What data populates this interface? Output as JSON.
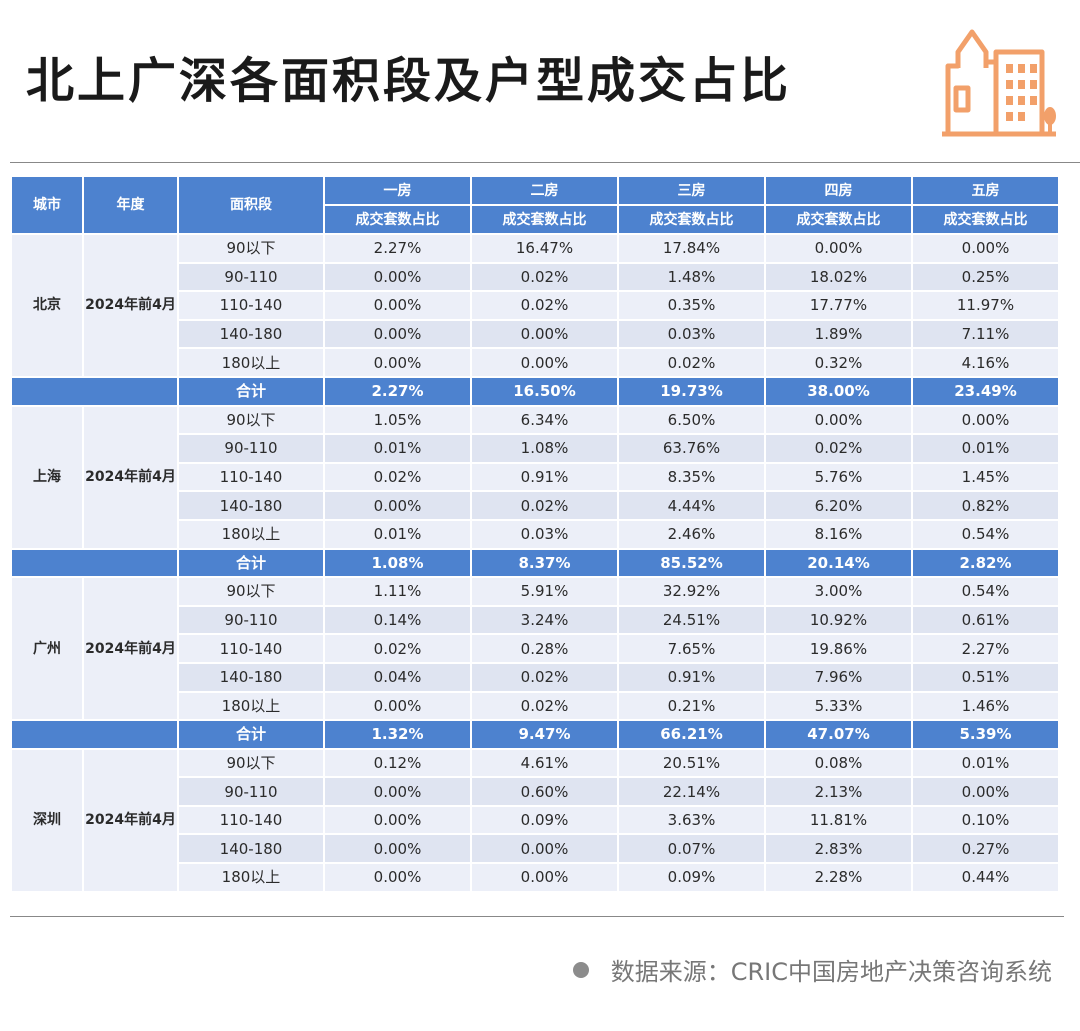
{
  "title": "北上广深各面积段及户型成交占比",
  "colors": {
    "header": "#4d82cf",
    "row": "#eceff8",
    "row_alt": "#dfe4f1",
    "highlight": "#e83535",
    "logo": "#f2a06a"
  },
  "logo_icon": "city-buildings-icon",
  "header": {
    "city": "城市",
    "year": "年度",
    "area": "面积段",
    "rooms": [
      "一房",
      "二房",
      "三房",
      "四房",
      "五房"
    ],
    "sub": "成交套数占比"
  },
  "total_label": "合计",
  "cities": [
    {
      "name": "北京",
      "year": "2024年前4月",
      "rows": [
        {
          "area": "90以下",
          "values": [
            "2.27%",
            "16.47%",
            "17.84%",
            "0.00%",
            "0.00%"
          ],
          "hl": [
            2
          ]
        },
        {
          "area": "90-110",
          "values": [
            "0.00%",
            "0.02%",
            "1.48%",
            "18.02%",
            "0.25%"
          ],
          "hl": [
            3
          ]
        },
        {
          "area": "110-140",
          "values": [
            "0.00%",
            "0.02%",
            "0.35%",
            "17.77%",
            "11.97%"
          ],
          "hl": []
        },
        {
          "area": "140-180",
          "values": [
            "0.00%",
            "0.00%",
            "0.03%",
            "1.89%",
            "7.11%"
          ],
          "hl": []
        },
        {
          "area": "180以上",
          "values": [
            "0.00%",
            "0.00%",
            "0.02%",
            "0.32%",
            "4.16%"
          ],
          "hl": []
        }
      ],
      "total": [
        "2.27%",
        "16.50%",
        "19.73%",
        "38.00%",
        "23.49%"
      ]
    },
    {
      "name": "上海",
      "year": "2024年前4月",
      "rows": [
        {
          "area": "90以下",
          "values": [
            "1.05%",
            "6.34%",
            "6.50%",
            "0.00%",
            "0.00%"
          ],
          "hl": []
        },
        {
          "area": "90-110",
          "values": [
            "0.01%",
            "1.08%",
            "63.76%",
            "0.02%",
            "0.01%"
          ],
          "hl": [
            2
          ]
        },
        {
          "area": "110-140",
          "values": [
            "0.02%",
            "0.91%",
            "8.35%",
            "5.76%",
            "1.45%"
          ],
          "hl": []
        },
        {
          "area": "140-180",
          "values": [
            "0.00%",
            "0.02%",
            "4.44%",
            "6.20%",
            "0.82%"
          ],
          "hl": []
        },
        {
          "area": "180以上",
          "values": [
            "0.01%",
            "0.03%",
            "2.46%",
            "8.16%",
            "0.54%"
          ],
          "hl": []
        }
      ],
      "total": [
        "1.08%",
        "8.37%",
        "85.52%",
        "20.14%",
        "2.82%"
      ]
    },
    {
      "name": "广州",
      "year": "2024年前4月",
      "rows": [
        {
          "area": "90以下",
          "values": [
            "1.11%",
            "5.91%",
            "32.92%",
            "3.00%",
            "0.54%"
          ],
          "hl": [
            2
          ]
        },
        {
          "area": "90-110",
          "values": [
            "0.14%",
            "3.24%",
            "24.51%",
            "10.92%",
            "0.61%"
          ],
          "hl": [
            2
          ]
        },
        {
          "area": "110-140",
          "values": [
            "0.02%",
            "0.28%",
            "7.65%",
            "19.86%",
            "2.27%"
          ],
          "hl": []
        },
        {
          "area": "140-180",
          "values": [
            "0.04%",
            "0.02%",
            "0.91%",
            "7.96%",
            "0.51%"
          ],
          "hl": []
        },
        {
          "area": "180以上",
          "values": [
            "0.00%",
            "0.02%",
            "0.21%",
            "5.33%",
            "1.46%"
          ],
          "hl": []
        }
      ],
      "total": [
        "1.32%",
        "9.47%",
        "66.21%",
        "47.07%",
        "5.39%"
      ]
    },
    {
      "name": "深圳",
      "year": "2024年前4月",
      "rows": [
        {
          "area": "90以下",
          "values": [
            "0.12%",
            "4.61%",
            "20.51%",
            "0.08%",
            "0.01%"
          ],
          "hl": [
            2
          ]
        },
        {
          "area": "90-110",
          "values": [
            "0.00%",
            "0.60%",
            "22.14%",
            "2.13%",
            "0.00%"
          ],
          "hl": [
            2
          ]
        },
        {
          "area": "110-140",
          "values": [
            "0.00%",
            "0.09%",
            "3.63%",
            "11.81%",
            "0.10%"
          ],
          "hl": []
        },
        {
          "area": "140-180",
          "values": [
            "0.00%",
            "0.00%",
            "0.07%",
            "2.83%",
            "0.27%"
          ],
          "hl": []
        },
        {
          "area": "180以上",
          "values": [
            "0.00%",
            "0.00%",
            "0.09%",
            "2.28%",
            "0.44%"
          ],
          "hl": []
        }
      ],
      "total": null
    }
  ],
  "source": "数据来源：CRIC中国房地产决策咨询系统"
}
